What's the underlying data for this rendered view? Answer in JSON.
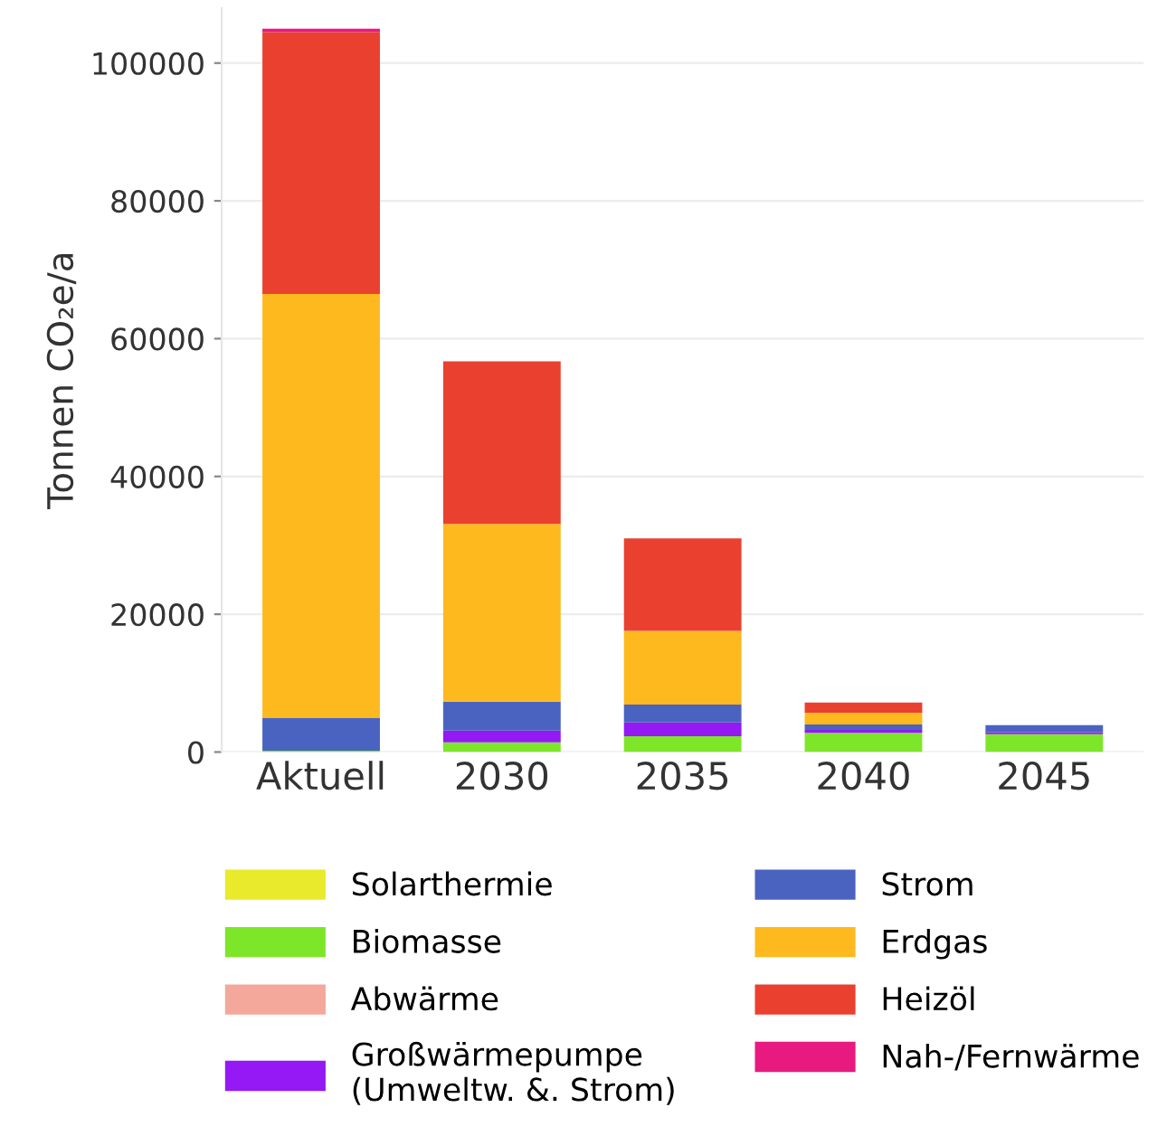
{
  "chart_data": {
    "type": "bar",
    "stacked": true,
    "ylabel": "Tonnen CO₂e/a",
    "categories": [
      "Aktuell",
      "2030",
      "2035",
      "2040",
      "2045"
    ],
    "series": [
      {
        "name": "Solarthermie",
        "color": "#e8ea2b",
        "values": [
          0,
          0,
          0,
          0,
          0
        ]
      },
      {
        "name": "Biomasse",
        "color": "#7ee629",
        "values": [
          200,
          1400,
          2300,
          2800,
          2600
        ]
      },
      {
        "name": "Abwärme",
        "color": "#f4a79b",
        "values": [
          0,
          0,
          0,
          0,
          0
        ]
      },
      {
        "name": "Großwärmepumpe\n(Umweltw. &. Strom)",
        "color": "#9419f5",
        "values": [
          0,
          1700,
          2000,
          400,
          300
        ]
      },
      {
        "name": "Strom",
        "color": "#4a63c0",
        "values": [
          4800,
          4200,
          2600,
          800,
          1000
        ]
      },
      {
        "name": "Erdgas",
        "color": "#fdb91e",
        "values": [
          61500,
          25800,
          10700,
          1700,
          0
        ]
      },
      {
        "name": "Heizöl",
        "color": "#ea4030",
        "values": [
          38000,
          23600,
          13400,
          1500,
          0
        ]
      },
      {
        "name": "Nah-/Fernwärme",
        "color": "#e8197f",
        "values": [
          500,
          0,
          0,
          0,
          0
        ]
      }
    ],
    "ylim": [
      0,
      108000
    ],
    "yticks": [
      0,
      20000,
      40000,
      60000,
      80000,
      100000
    ],
    "grid": "y",
    "legend": "bottom"
  }
}
